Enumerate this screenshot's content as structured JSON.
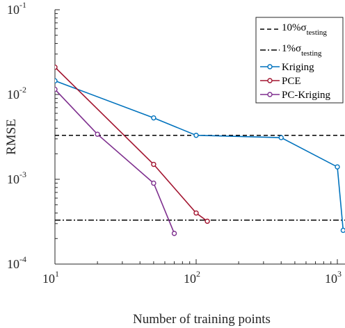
{
  "chart_data": {
    "type": "line",
    "xscale": "log",
    "yscale": "log",
    "xlim": [
      10,
      1100
    ],
    "ylim": [
      0.0001,
      0.1
    ],
    "xlabel": "Number of training points",
    "ylabel": "RMSE",
    "x_ticks": [
      {
        "value": 10,
        "base": "10",
        "exp": "1"
      },
      {
        "value": 100,
        "base": "10",
        "exp": "2"
      },
      {
        "value": 1000,
        "base": "10",
        "exp": "3"
      }
    ],
    "y_ticks": [
      {
        "value": 0.0001,
        "base": "10",
        "exp": "-4"
      },
      {
        "value": 0.001,
        "base": "10",
        "exp": "-3"
      },
      {
        "value": 0.01,
        "base": "10",
        "exp": "-2"
      },
      {
        "value": 0.1,
        "base": "10",
        "exp": "-1"
      }
    ],
    "legend_position": "top-right",
    "reference_lines": [
      {
        "name": "10%σ",
        "subscript": "testing",
        "value": 0.0033,
        "style": "dashed",
        "color": "#000000"
      },
      {
        "name": "1%σ",
        "subscript": "testing",
        "value": 0.00033,
        "style": "dashdot",
        "color": "#000000"
      }
    ],
    "series": [
      {
        "name": "Kriging",
        "color": "#0072BD",
        "x": [
          10,
          50,
          100,
          400,
          1000,
          1100
        ],
        "y": [
          0.0145,
          0.0053,
          0.0033,
          0.0031,
          0.0014,
          0.00025
        ]
      },
      {
        "name": "PCE",
        "color": "#A2142F",
        "x": [
          10,
          50,
          100,
          120
        ],
        "y": [
          0.021,
          0.0015,
          0.0004,
          0.00032
        ]
      },
      {
        "name": "PC-Kriging",
        "color": "#7E2F8E",
        "x": [
          10,
          20,
          50,
          70
        ],
        "y": [
          0.0115,
          0.0034,
          0.0009,
          0.00023
        ]
      }
    ]
  }
}
